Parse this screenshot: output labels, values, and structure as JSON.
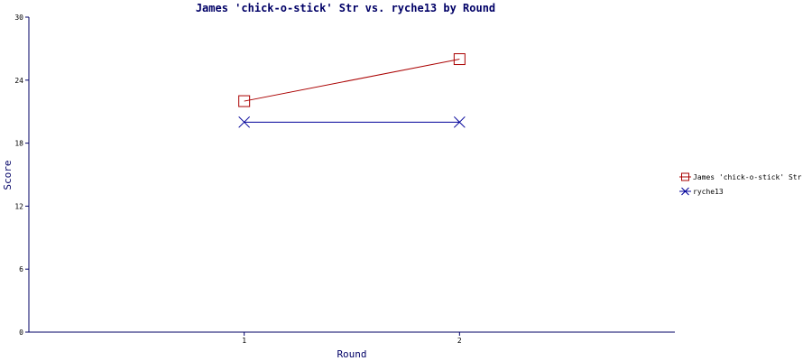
{
  "colors": {
    "axis": "#000066",
    "series1": "#aa0000",
    "series2": "#000099"
  },
  "chart_data": {
    "type": "line",
    "title": "James 'chick-o-stick' Str vs. ryche13 by Round",
    "xlabel": "Round",
    "ylabel": "Score",
    "x": [
      1,
      2
    ],
    "xlim": [
      0,
      3
    ],
    "ylim": [
      0,
      30
    ],
    "yticks": [
      0,
      6,
      12,
      18,
      24,
      30
    ],
    "grid": false,
    "legend_position": "right",
    "series": [
      {
        "name": "James 'chick-o-stick' Str",
        "values": [
          22,
          26
        ],
        "marker": "square"
      },
      {
        "name": "ryche13",
        "values": [
          20,
          20
        ],
        "marker": "x"
      }
    ]
  }
}
